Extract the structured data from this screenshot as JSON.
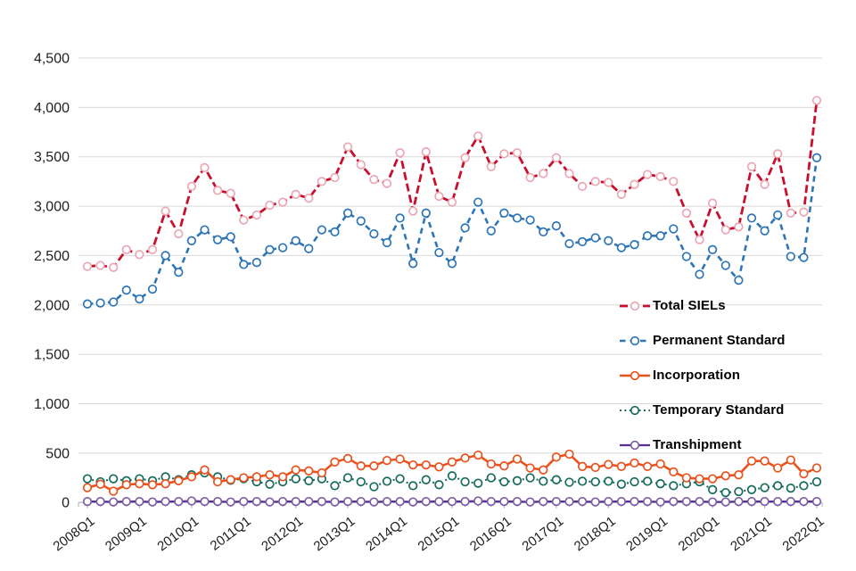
{
  "page": {
    "background": "#ffffff",
    "title": ""
  },
  "colors": {
    "gridline": "#d9d9d9",
    "axis_line": "#bfbfbf",
    "tick": "#ababab",
    "axis_text": "#212121",
    "legend_text": "#000000"
  },
  "chart_data": {
    "type": "line",
    "title": "",
    "xlabel": "",
    "ylabel": "",
    "grid": true,
    "legend_position": "middle-right",
    "x_categories": [
      "2008Q1",
      "2008Q2",
      "2008Q3",
      "2008Q4",
      "2009Q1",
      "2009Q2",
      "2009Q3",
      "2009Q4",
      "2010Q1",
      "2010Q2",
      "2010Q3",
      "2010Q4",
      "2011Q1",
      "2011Q2",
      "2011Q3",
      "2011Q4",
      "2012Q1",
      "2012Q2",
      "2012Q3",
      "2012Q4",
      "2013Q1",
      "2013Q2",
      "2013Q3",
      "2013Q4",
      "2014Q1",
      "2014Q2",
      "2014Q3",
      "2014Q4",
      "2015Q1",
      "2015Q2",
      "2015Q3",
      "2015Q4",
      "2016Q1",
      "2016Q2",
      "2016Q3",
      "2016Q4",
      "2017Q1",
      "2017Q2",
      "2017Q3",
      "2017Q4",
      "2018Q1",
      "2018Q2",
      "2018Q3",
      "2018Q4",
      "2019Q1",
      "2019Q2",
      "2019Q3",
      "2019Q4",
      "2020Q1",
      "2020Q2",
      "2020Q3",
      "2020Q4",
      "2021Q1",
      "2021Q2",
      "2021Q3",
      "2021Q4",
      "2022Q1"
    ],
    "x_axis_tick_labels": [
      "2008Q1",
      "2009Q1",
      "2010Q1",
      "2011Q1",
      "2012Q1",
      "2013Q1",
      "2014Q1",
      "2015Q1",
      "2016Q1",
      "2017Q1",
      "2018Q1",
      "2019Q1",
      "2020Q1",
      "2021Q1",
      "2022Q1"
    ],
    "y_axis": {
      "min": 0,
      "max": 4500,
      "step": 500,
      "tick_labels": [
        "0",
        "500",
        "1,000",
        "1,500",
        "2,000",
        "2,500",
        "3,000",
        "3,500",
        "4,000",
        "4,500"
      ]
    },
    "series": [
      {
        "name": "Total SIELs",
        "color": "#c8102e",
        "marker_color": "#eba7b4",
        "style": "dashed",
        "dash": "9 4",
        "width": 2.8,
        "values": [
          2390,
          2400,
          2380,
          2560,
          2510,
          2560,
          2950,
          2720,
          3200,
          3390,
          3160,
          3130,
          2860,
          2910,
          3010,
          3040,
          3120,
          3080,
          3250,
          3290,
          3600,
          3420,
          3270,
          3230,
          3540,
          2950,
          3550,
          3100,
          3040,
          3490,
          3710,
          3400,
          3530,
          3540,
          3290,
          3330,
          3490,
          3330,
          3200,
          3250,
          3240,
          3120,
          3220,
          3320,
          3300,
          3250,
          2930,
          2660,
          3030,
          2760,
          2790,
          3400,
          3220,
          3530,
          2930,
          2940,
          4070
        ]
      },
      {
        "name": "Permanent Standard",
        "color": "#2e75b6",
        "marker_color": "#2e75b6",
        "style": "dashed",
        "dash": "6.5 5",
        "width": 2.6,
        "values": [
          2010,
          2020,
          2030,
          2150,
          2060,
          2160,
          2500,
          2330,
          2650,
          2760,
          2660,
          2690,
          2410,
          2430,
          2560,
          2580,
          2650,
          2570,
          2760,
          2740,
          2930,
          2850,
          2720,
          2630,
          2880,
          2420,
          2930,
          2530,
          2420,
          2780,
          3040,
          2750,
          2930,
          2880,
          2860,
          2740,
          2800,
          2620,
          2640,
          2680,
          2650,
          2580,
          2610,
          2700,
          2700,
          2770,
          2490,
          2310,
          2560,
          2400,
          2250,
          2880,
          2750,
          2910,
          2490,
          2480,
          3490
        ]
      },
      {
        "name": "Incorporation",
        "color": "#e8531f",
        "marker_color": "#e8531f",
        "style": "solid",
        "dash": "",
        "width": 2.6,
        "values": [
          150,
          185,
          115,
          180,
          190,
          180,
          190,
          220,
          260,
          330,
          210,
          230,
          250,
          260,
          280,
          260,
          330,
          320,
          300,
          410,
          445,
          370,
          370,
          425,
          440,
          380,
          380,
          360,
          410,
          450,
          480,
          390,
          370,
          440,
          350,
          330,
          460,
          490,
          365,
          355,
          385,
          365,
          400,
          365,
          390,
          310,
          250,
          240,
          240,
          270,
          280,
          420,
          420,
          350,
          430,
          290,
          350
        ]
      },
      {
        "name": "Temporary Standard",
        "color": "#176b5d",
        "marker_color": "#176b5d",
        "style": "dotted",
        "dash": "2 3.4",
        "width": 2.1,
        "values": [
          240,
          210,
          240,
          220,
          240,
          220,
          260,
          230,
          280,
          300,
          260,
          225,
          240,
          210,
          185,
          210,
          240,
          220,
          240,
          170,
          250,
          210,
          160,
          215,
          240,
          170,
          230,
          180,
          270,
          210,
          195,
          250,
          210,
          220,
          250,
          215,
          230,
          205,
          215,
          210,
          215,
          185,
          210,
          215,
          190,
          170,
          190,
          210,
          130,
          100,
          110,
          130,
          150,
          170,
          145,
          170,
          210
        ]
      },
      {
        "name": "Transhipment",
        "color": "#5b2e91",
        "marker_color": "#7b5ea7",
        "style": "solid",
        "dash": "",
        "width": 2.3,
        "values": [
          10,
          10,
          5,
          10,
          10,
          5,
          10,
          10,
          15,
          10,
          10,
          5,
          10,
          10,
          5,
          10,
          10,
          10,
          10,
          5,
          10,
          10,
          5,
          10,
          10,
          5,
          10,
          10,
          10,
          10,
          15,
          10,
          10,
          10,
          5,
          10,
          10,
          10,
          10,
          5,
          10,
          10,
          10,
          10,
          5,
          10,
          10,
          10,
          5,
          5,
          10,
          10,
          10,
          10,
          10,
          10,
          10
        ]
      }
    ]
  }
}
